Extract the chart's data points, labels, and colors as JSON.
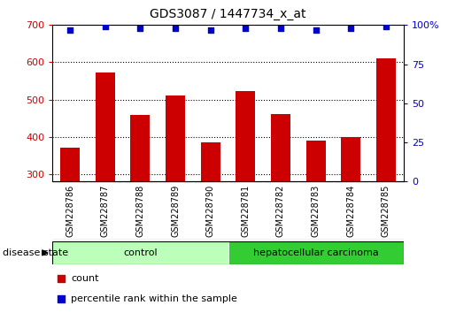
{
  "title": "GDS3087 / 1447734_x_at",
  "categories": [
    "GSM228786",
    "GSM228787",
    "GSM228788",
    "GSM228789",
    "GSM228790",
    "GSM228781",
    "GSM228782",
    "GSM228783",
    "GSM228784",
    "GSM228785"
  ],
  "counts": [
    370,
    572,
    458,
    510,
    385,
    522,
    460,
    390,
    400,
    610
  ],
  "percentiles": [
    97,
    99,
    98,
    98,
    97,
    98,
    98,
    97,
    98,
    99
  ],
  "ylim_left": [
    280,
    700
  ],
  "ylim_right": [
    0,
    100
  ],
  "yticks_left": [
    300,
    400,
    500,
    600,
    700
  ],
  "yticks_right": [
    0,
    25,
    50,
    75,
    100
  ],
  "bar_color": "#cc0000",
  "dot_color": "#0000cc",
  "bar_bottom": 280,
  "groups": [
    {
      "label": "control",
      "span": [
        0,
        4
      ],
      "color": "#bbffbb"
    },
    {
      "label": "hepatocellular carcinoma",
      "span": [
        5,
        9
      ],
      "color": "#33cc33"
    }
  ],
  "disease_state_label": "disease state",
  "legend_count_label": "count",
  "legend_percentile_label": "percentile rank within the sample",
  "tick_label_color_left": "#cc0000",
  "tick_label_color_right": "#0000cc",
  "label_area_color": "#c8c8c8",
  "label_area_line_color": "#ffffff"
}
